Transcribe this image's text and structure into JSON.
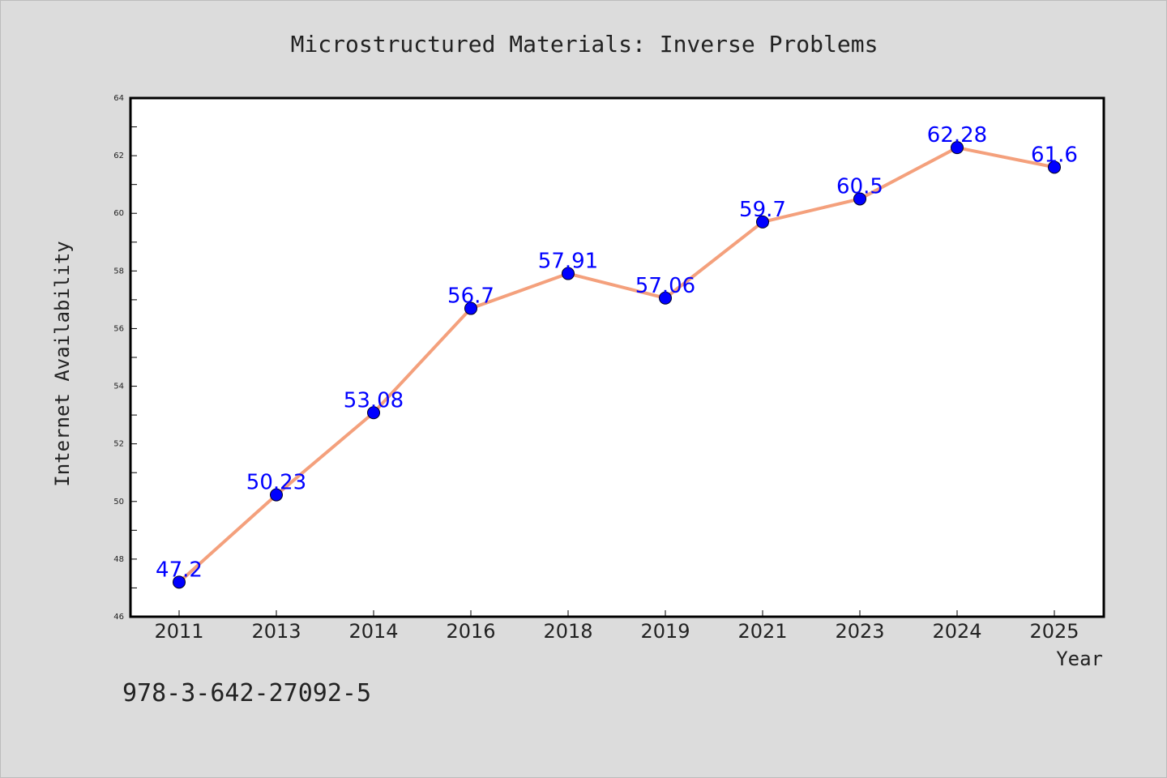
{
  "chart_data": {
    "type": "line",
    "title": "Microstructured Materials: Inverse Problems",
    "xlabel": "Year",
    "ylabel": "Internet Availability",
    "categories": [
      "2011",
      "2013",
      "2014",
      "2016",
      "2018",
      "2019",
      "2021",
      "2023",
      "2024",
      "2025"
    ],
    "series": [
      {
        "values": [
          47.2,
          50.23,
          53.08,
          56.7,
          57.91,
          57.06,
          59.7,
          60.5,
          62.28,
          61.6
        ],
        "data_labels": [
          "47.2",
          "50.23",
          "53.08",
          "56.7",
          "57.91",
          "57.06",
          "59.7",
          "60.5",
          "62.28",
          "61.6"
        ]
      }
    ],
    "ylim": [
      46,
      64
    ],
    "y_ticks": [
      46,
      48,
      50,
      52,
      54,
      56,
      58,
      60,
      62,
      64
    ],
    "grid": false,
    "legend": "none",
    "colors": {
      "line": "#f4a07c",
      "marker": "#0000ff",
      "data_label": "#0000ff",
      "text": "#222222",
      "plot_bg": "#ffffff",
      "figure_bg": "#dcdcdc"
    }
  },
  "annotation": "978-3-642-27092-5"
}
